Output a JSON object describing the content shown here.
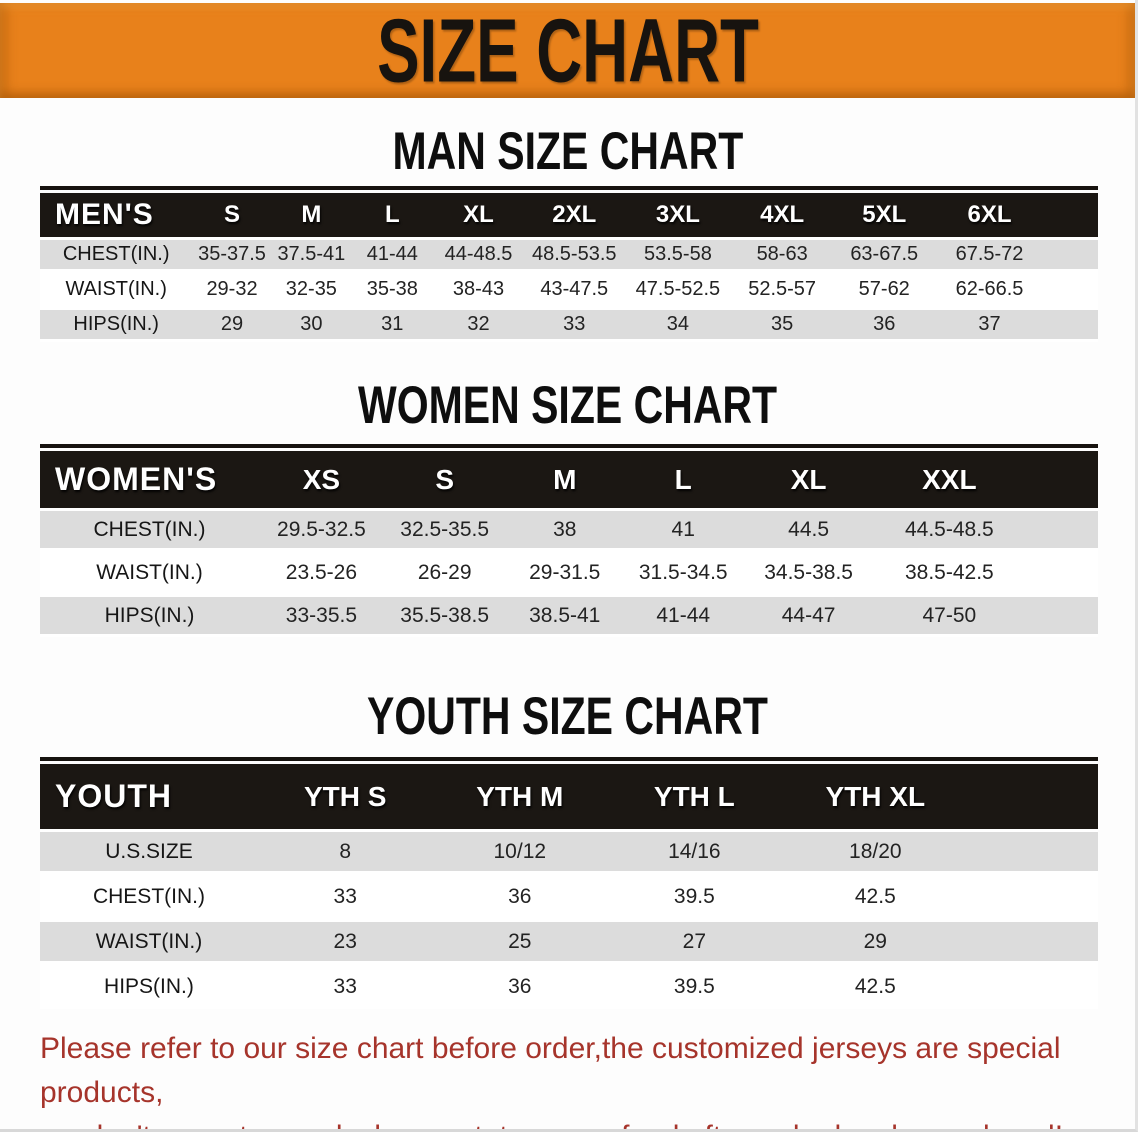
{
  "banner": {
    "title": "SIZE CHART"
  },
  "colors": {
    "banner_bg": "#E8811B",
    "banner_text": "#17130F",
    "header_band_bg": "#1B1713",
    "header_band_text": "#FFFFFF",
    "row_stripe": "#DCDCDC",
    "footer_text": "#A6342B"
  },
  "sections": [
    {
      "heading": "MAN SIZE CHART",
      "table": {
        "header": [
          "MEN'S",
          "S",
          "M",
          "L",
          "XL",
          "2XL",
          "3XL",
          "4XL",
          "5XL",
          "6XL"
        ],
        "rows": [
          {
            "label": "CHEST(IN.)",
            "values": [
              "35-37.5",
              "37.5-41",
              "41-44",
              "44-48.5",
              "48.5-53.5",
              "53.5-58",
              "58-63",
              "63-67.5",
              "67.5-72"
            ]
          },
          {
            "label": "WAIST(IN.)",
            "values": [
              "29-32",
              "32-35",
              "35-38",
              "38-43",
              "43-47.5",
              "47.5-52.5",
              "52.5-57",
              "57-62",
              "62-66.5"
            ]
          },
          {
            "label": "HIPS(IN.)",
            "values": [
              "29",
              "30",
              "31",
              "32",
              "33",
              "34",
              "35",
              "36",
              "37"
            ]
          }
        ]
      }
    },
    {
      "heading": "WOMEN SIZE CHART",
      "table": {
        "header": [
          "WOMEN'S",
          "XS",
          "S",
          "M",
          "L",
          "XL",
          "XXL"
        ],
        "rows": [
          {
            "label": "CHEST(IN.)",
            "values": [
              "29.5-32.5",
              "32.5-35.5",
              "38",
              "41",
              "44.5",
              "44.5-48.5"
            ]
          },
          {
            "label": "WAIST(IN.)",
            "values": [
              "23.5-26",
              "26-29",
              "29-31.5",
              "31.5-34.5",
              "34.5-38.5",
              "38.5-42.5"
            ]
          },
          {
            "label": "HIPS(IN.)",
            "values": [
              "33-35.5",
              "35.5-38.5",
              "38.5-41",
              "41-44",
              "44-47",
              "47-50"
            ]
          }
        ]
      }
    },
    {
      "heading": "YOUTH SIZE CHART",
      "table": {
        "header": [
          "YOUTH",
          "YTH S",
          "YTH M",
          "YTH L",
          "YTH XL"
        ],
        "rows": [
          {
            "label": "U.S.SIZE",
            "values": [
              "8",
              "10/12",
              "14/16",
              "18/20"
            ]
          },
          {
            "label": "CHEST(IN.)",
            "values": [
              "33",
              "36",
              "39.5",
              "42.5"
            ]
          },
          {
            "label": "WAIST(IN.)",
            "values": [
              "23",
              "25",
              "27",
              "29"
            ]
          },
          {
            "label": "HIPS(IN.)",
            "values": [
              "33",
              "36",
              "39.5",
              "42.5"
            ]
          }
        ]
      }
    }
  ],
  "footer": {
    "line1": "Please refer to our size chart before order,the customized jerseys are special products,",
    "line2": "we don't accept cancel, change, teturn or refund after order has been placed!"
  }
}
